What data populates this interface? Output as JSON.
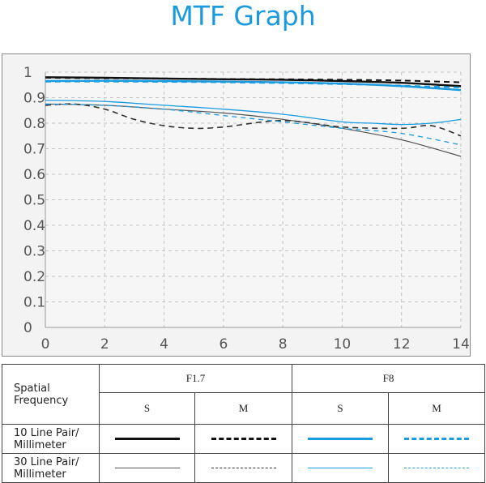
{
  "title": "MTF Graph",
  "chart_data": {
    "type": "line",
    "xlim": [
      0,
      14
    ],
    "ylim": [
      0,
      1
    ],
    "x_ticks": [
      "0",
      "2",
      "4",
      "6",
      "8",
      "10",
      "12",
      "14"
    ],
    "y_ticks": [
      "0",
      "0.1",
      "0.2",
      "0.3",
      "0.4",
      "0.5",
      "0.6",
      "0.7",
      "0.8",
      "0.9",
      "1"
    ],
    "grid": true,
    "series": [
      {
        "name": "F1.7 S 10 Line Pair/Millimeter",
        "color": "#111111",
        "width": 2.4,
        "dash": "none",
        "x": [
          0,
          2,
          4,
          6,
          8,
          10,
          12,
          14
        ],
        "y": [
          0.98,
          0.978,
          0.975,
          0.972,
          0.97,
          0.965,
          0.958,
          0.945
        ]
      },
      {
        "name": "F1.7 M 10 Line Pair/Millimeter",
        "color": "#111111",
        "width": 2.0,
        "dash": "7,5",
        "x": [
          0,
          2,
          4,
          6,
          8,
          10,
          12,
          14
        ],
        "y": [
          0.978,
          0.976,
          0.975,
          0.973,
          0.972,
          0.97,
          0.967,
          0.96
        ]
      },
      {
        "name": "F8 S 10 Line Pair/Millimeter",
        "color": "#1a9be0",
        "width": 2.4,
        "dash": "none",
        "x": [
          0,
          2,
          4,
          6,
          8,
          10,
          12,
          14
        ],
        "y": [
          0.965,
          0.966,
          0.965,
          0.963,
          0.96,
          0.955,
          0.945,
          0.93
        ]
      },
      {
        "name": "F8 M 10 Line Pair/Millimeter",
        "color": "#1a9be0",
        "width": 2.0,
        "dash": "7,5",
        "x": [
          0,
          2,
          4,
          6,
          8,
          10,
          12,
          14
        ],
        "y": [
          0.963,
          0.963,
          0.962,
          0.96,
          0.957,
          0.953,
          0.947,
          0.94
        ]
      },
      {
        "name": "F1.7 S 30 Line Pair/Millimeter",
        "color": "#555555",
        "width": 1.2,
        "dash": "none",
        "x": [
          0,
          2,
          4,
          6,
          8,
          10,
          12,
          14
        ],
        "y": [
          0.875,
          0.87,
          0.855,
          0.84,
          0.815,
          0.78,
          0.735,
          0.67
        ]
      },
      {
        "name": "F1.7 M 30 Line Pair/Millimeter",
        "color": "#333333",
        "width": 1.6,
        "dash": "7,5",
        "x": [
          0,
          1,
          2,
          3,
          4,
          5,
          6,
          8,
          10,
          12,
          13,
          14
        ],
        "y": [
          0.87,
          0.875,
          0.855,
          0.815,
          0.79,
          0.78,
          0.785,
          0.81,
          0.785,
          0.78,
          0.79,
          0.75
        ]
      },
      {
        "name": "F8 S 30 Line Pair/Millimeter",
        "color": "#1a9be0",
        "width": 1.3,
        "dash": "none",
        "x": [
          0,
          2,
          4,
          6,
          8,
          10,
          11,
          12,
          13,
          14
        ],
        "y": [
          0.89,
          0.885,
          0.87,
          0.855,
          0.835,
          0.805,
          0.8,
          0.795,
          0.8,
          0.815
        ]
      },
      {
        "name": "F8 M 30 Line Pair/Millimeter",
        "color": "#1a9be0",
        "width": 1.3,
        "dash": "6,5",
        "x": [
          0,
          2,
          4,
          6,
          8,
          10,
          12,
          14
        ],
        "y": [
          0.875,
          0.87,
          0.855,
          0.83,
          0.805,
          0.78,
          0.76,
          0.715
        ]
      }
    ]
  },
  "legend": {
    "header_label_line1": "Spatial",
    "header_label_line2": "Frequency",
    "f17": "F1.7",
    "f8": "F8",
    "s": "S",
    "m": "M",
    "row10_line1": "10 Line Pair/",
    "row10_line2": "Millimeter",
    "row30_line1": "30 Line Pair/",
    "row30_line2": "Millimeter"
  }
}
